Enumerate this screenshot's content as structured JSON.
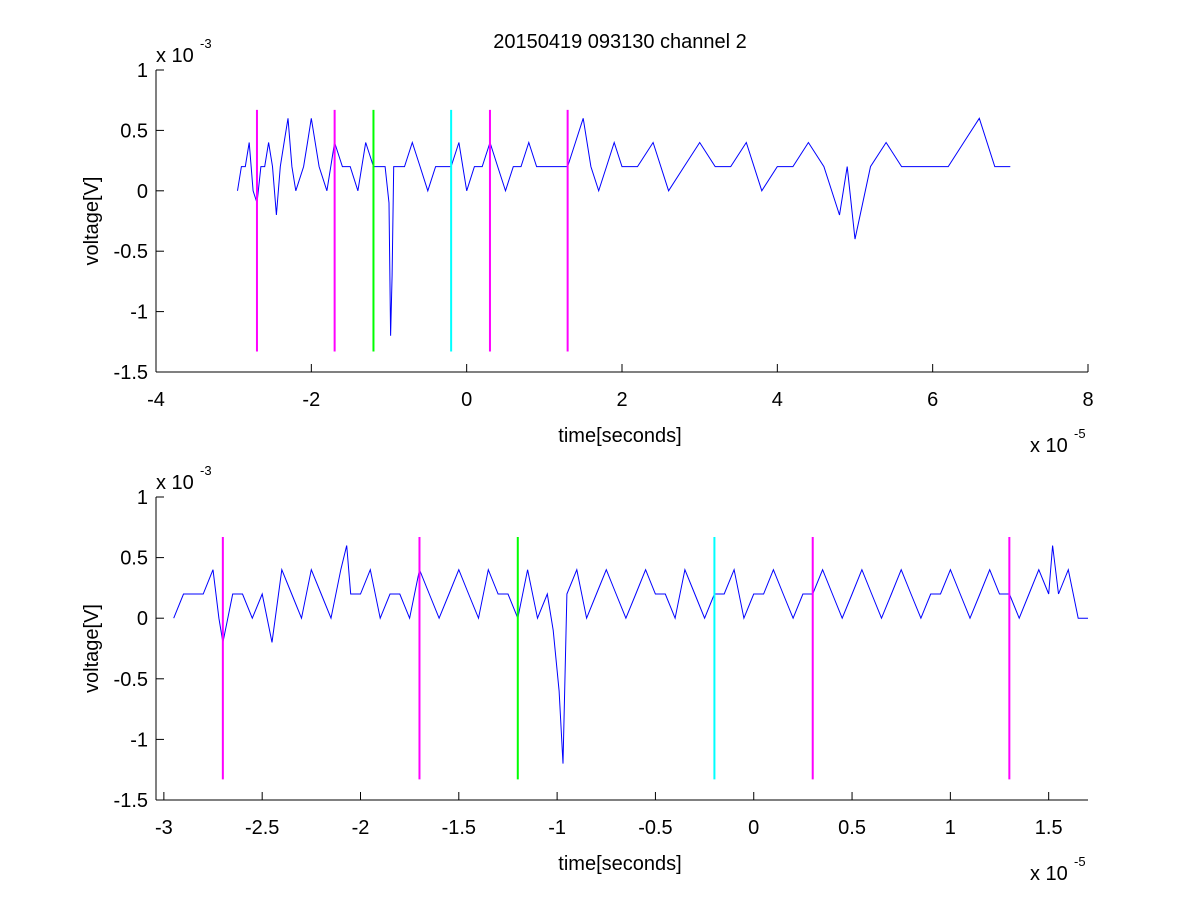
{
  "figure": {
    "title": "20150419 093130 channel 2"
  },
  "chart_data": [
    {
      "type": "line",
      "title": "20150419 093130 channel 2",
      "xlabel": "time[seconds]",
      "ylabel": "voltage[V]",
      "x_exponent": "x 10",
      "x_exponent_power": "-5",
      "y_exponent": "x 10",
      "y_exponent_power": "-3",
      "xlim": [
        -4,
        8
      ],
      "ylim": [
        -1.5,
        1
      ],
      "xticks": [
        -4,
        -2,
        0,
        2,
        4,
        6,
        8
      ],
      "xtick_labels": [
        "-4",
        "-2",
        "0",
        "2",
        "4",
        "6",
        "8"
      ],
      "yticks": [
        -1.5,
        -1,
        -0.5,
        0,
        0.5,
        1
      ],
      "ytick_labels": [
        "-1.5",
        "-1",
        "-0.5",
        "0",
        "0.5",
        "1"
      ],
      "grid": false,
      "series": [
        {
          "color": "#0000ff",
          "x": [
            -2.95,
            -2.9,
            -2.85,
            -2.8,
            -2.75,
            -2.7,
            -2.65,
            -2.6,
            -2.55,
            -2.5,
            -2.45,
            -2.4,
            -2.35,
            -2.3,
            -2.25,
            -2.2,
            -2.1,
            -2.05,
            -2,
            -1.9,
            -1.8,
            -1.7,
            -1.6,
            -1.5,
            -1.4,
            -1.3,
            -1.2,
            -1.1,
            -1.05,
            -1.0,
            -0.98,
            -0.96,
            -0.94,
            -0.9,
            -0.8,
            -0.7,
            -0.6,
            -0.5,
            -0.4,
            -0.3,
            -0.2,
            -0.1,
            0,
            0.1,
            0.2,
            0.3,
            0.4,
            0.5,
            0.6,
            0.7,
            0.8,
            0.9,
            1.0,
            1.1,
            1.2,
            1.3,
            1.4,
            1.5,
            1.6,
            1.7,
            1.8,
            1.9,
            2.0,
            2.2,
            2.4,
            2.6,
            2.8,
            3.0,
            3.2,
            3.4,
            3.6,
            3.8,
            4.0,
            4.2,
            4.4,
            4.6,
            4.8,
            4.9,
            5.0,
            5.2,
            5.4,
            5.6,
            5.8,
            6.0,
            6.2,
            6.4,
            6.6,
            6.8,
            7.0
          ],
          "y": [
            0,
            0.2,
            0.2,
            0.4,
            0,
            -0.1,
            0.2,
            0.2,
            0.4,
            0.2,
            -0.2,
            0.2,
            0.4,
            0.6,
            0.2,
            0,
            0.2,
            0.4,
            0.6,
            0.2,
            0,
            0.4,
            0.2,
            0.2,
            0,
            0.4,
            0.2,
            0.2,
            0.2,
            -0.1,
            -1.2,
            -0.7,
            0.2,
            0.2,
            0.2,
            0.4,
            0.2,
            0,
            0.2,
            0.2,
            0.2,
            0.4,
            0,
            0.2,
            0.2,
            0.4,
            0.2,
            0,
            0.2,
            0.2,
            0.4,
            0.2,
            0.2,
            0.2,
            0.2,
            0.2,
            0.4,
            0.6,
            0.2,
            0,
            0.2,
            0.4,
            0.2,
            0.2,
            0.4,
            0,
            0.2,
            0.4,
            0.2,
            0.2,
            0.4,
            0,
            0.2,
            0.2,
            0.4,
            0.2,
            -0.2,
            0.2,
            -0.4,
            0.2,
            0.4,
            0.2,
            0.2,
            0.2,
            0.2,
            0.4,
            0.6,
            0.2,
            0.2
          ]
        }
      ],
      "markers": [
        {
          "x": -2.7,
          "ymin": -1.33,
          "ymax": 0.67,
          "color": "#ff00ff"
        },
        {
          "x": -1.7,
          "ymin": -1.33,
          "ymax": 0.67,
          "color": "#ff00ff"
        },
        {
          "x": -1.2,
          "ymin": -1.33,
          "ymax": 0.67,
          "color": "#00ff00"
        },
        {
          "x": -0.2,
          "ymin": -1.33,
          "ymax": 0.67,
          "color": "#00ffff"
        },
        {
          "x": 0.3,
          "ymin": -1.33,
          "ymax": 0.67,
          "color": "#ff00ff"
        },
        {
          "x": 1.3,
          "ymin": -1.33,
          "ymax": 0.67,
          "color": "#ff00ff"
        }
      ]
    },
    {
      "type": "line",
      "title": "",
      "xlabel": "time[seconds]",
      "ylabel": "voltage[V]",
      "x_exponent": "x 10",
      "x_exponent_power": "-5",
      "y_exponent": "x 10",
      "y_exponent_power": "-3",
      "xlim": [
        -3.04,
        1.7
      ],
      "ylim": [
        -1.5,
        1
      ],
      "xticks": [
        -3,
        -2.5,
        -2,
        -1.5,
        -1,
        -0.5,
        0,
        0.5,
        1,
        1.5
      ],
      "xtick_labels": [
        "-3",
        "-2.5",
        "-2",
        "-1.5",
        "-1",
        "-0.5",
        "0",
        "0.5",
        "1",
        "1.5"
      ],
      "yticks": [
        -1.5,
        -1,
        -0.5,
        0,
        0.5,
        1
      ],
      "ytick_labels": [
        "-1.5",
        "-1",
        "-0.5",
        "0",
        "0.5",
        "1"
      ],
      "grid": false,
      "series": [
        {
          "color": "#0000ff",
          "x": [
            -2.95,
            -2.9,
            -2.85,
            -2.8,
            -2.75,
            -2.72,
            -2.7,
            -2.65,
            -2.6,
            -2.55,
            -2.5,
            -2.45,
            -2.4,
            -2.35,
            -2.3,
            -2.25,
            -2.2,
            -2.15,
            -2.1,
            -2.07,
            -2.05,
            -2.0,
            -1.95,
            -1.9,
            -1.85,
            -1.8,
            -1.75,
            -1.7,
            -1.65,
            -1.6,
            -1.55,
            -1.5,
            -1.45,
            -1.4,
            -1.35,
            -1.3,
            -1.25,
            -1.2,
            -1.15,
            -1.1,
            -1.05,
            -1.02,
            -0.99,
            -0.97,
            -0.95,
            -0.9,
            -0.85,
            -0.8,
            -0.75,
            -0.7,
            -0.65,
            -0.6,
            -0.55,
            -0.5,
            -0.45,
            -0.4,
            -0.35,
            -0.3,
            -0.25,
            -0.2,
            -0.15,
            -0.1,
            -0.05,
            0,
            0.05,
            0.1,
            0.15,
            0.2,
            0.25,
            0.3,
            0.35,
            0.4,
            0.45,
            0.5,
            0.55,
            0.6,
            0.65,
            0.7,
            0.75,
            0.8,
            0.85,
            0.9,
            0.95,
            1.0,
            1.05,
            1.1,
            1.15,
            1.2,
            1.25,
            1.3,
            1.35,
            1.4,
            1.45,
            1.5,
            1.52,
            1.55,
            1.6,
            1.65,
            1.7
          ],
          "y": [
            0,
            0.2,
            0.2,
            0.2,
            0.4,
            0,
            -0.2,
            0.2,
            0.2,
            0,
            0.2,
            -0.2,
            0.4,
            0.2,
            0,
            0.4,
            0.2,
            0,
            0.4,
            0.6,
            0.2,
            0.2,
            0.4,
            0,
            0.2,
            0.2,
            0,
            0.4,
            0.2,
            0,
            0.2,
            0.4,
            0.2,
            0,
            0.4,
            0.2,
            0.2,
            0,
            0.4,
            0,
            0.2,
            -0.1,
            -0.6,
            -1.2,
            0.2,
            0.4,
            0,
            0.2,
            0.4,
            0.2,
            0,
            0.2,
            0.4,
            0.2,
            0.2,
            0,
            0.4,
            0.2,
            0,
            0.2,
            0.2,
            0.4,
            0,
            0.2,
            0.2,
            0.4,
            0.2,
            0,
            0.2,
            0.2,
            0.4,
            0.2,
            0,
            0.2,
            0.4,
            0.2,
            0,
            0.2,
            0.4,
            0.2,
            0,
            0.2,
            0.2,
            0.4,
            0.2,
            0,
            0.2,
            0.4,
            0.2,
            0.2,
            0,
            0.2,
            0.4,
            0.2,
            0.6,
            0.2,
            0.4,
            0,
            0
          ]
        }
      ],
      "markers": [
        {
          "x": -2.7,
          "ymin": -1.33,
          "ymax": 0.67,
          "color": "#ff00ff"
        },
        {
          "x": -1.7,
          "ymin": -1.33,
          "ymax": 0.67,
          "color": "#ff00ff"
        },
        {
          "x": -1.2,
          "ymin": -1.33,
          "ymax": 0.67,
          "color": "#00ff00"
        },
        {
          "x": -0.2,
          "ymin": -1.33,
          "ymax": 0.67,
          "color": "#00ffff"
        },
        {
          "x": 0.3,
          "ymin": -1.33,
          "ymax": 0.67,
          "color": "#ff00ff"
        },
        {
          "x": 1.3,
          "ymin": -1.33,
          "ymax": 0.67,
          "color": "#ff00ff"
        }
      ]
    }
  ]
}
